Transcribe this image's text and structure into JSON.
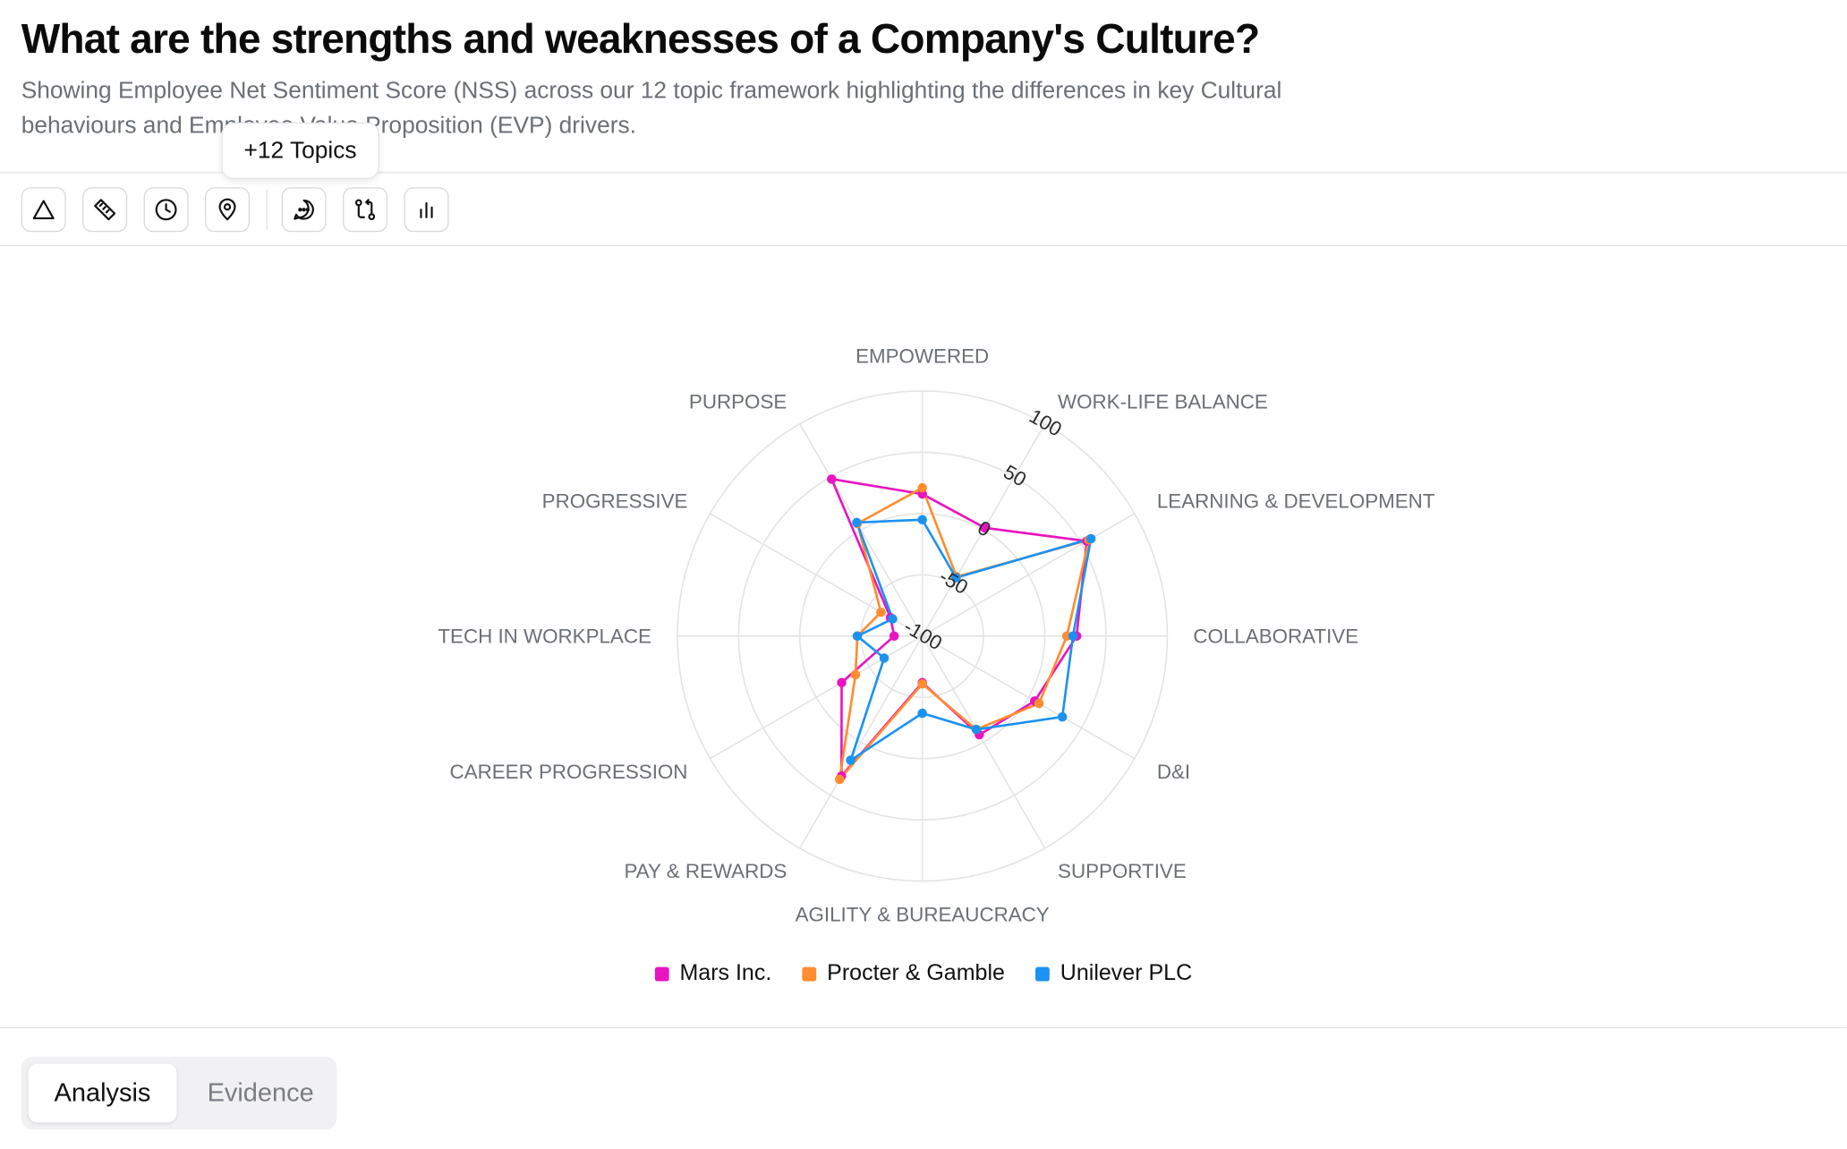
{
  "header": {
    "title": "What are the strengths and weaknesses of a Company's Culture?",
    "subtitle": "Showing Employee Net Sentiment Score (NSS) across our 12 topic framework highlighting the differences in key Cultural behaviours and Employee Value Proposition (EVP) drivers."
  },
  "tooltip": {
    "text": "+12 Topics"
  },
  "toolbar": {
    "buttons": [
      {
        "icon": "triangle-icon"
      },
      {
        "icon": "ruler-icon"
      },
      {
        "icon": "clock-icon"
      },
      {
        "icon": "map-pin-icon"
      },
      {
        "icon": "message-circle-icon"
      },
      {
        "icon": "compare-icon"
      },
      {
        "icon": "bar-chart-icon"
      }
    ]
  },
  "chart_data": {
    "type": "radar",
    "categories": [
      "EMPOWERED",
      "WORK-LIFE BALANCE",
      "LEARNING & DEVELOPMENT",
      "COLLABORATIVE",
      "D&I",
      "SUPPORTIVE",
      "AGILITY & BUREAUCRACY",
      "PAY & REWARDS",
      "CAREER PROGRESSION",
      "TECH IN WORKPLACE",
      "PROGRESSIVE",
      "PURPOSE"
    ],
    "radial_ticks": [
      -100,
      -50,
      0,
      50,
      100
    ],
    "rlim": [
      -100,
      100
    ],
    "grid": true,
    "legend_position": "bottom",
    "series": [
      {
        "name": "Mars Inc.",
        "color": "#e815c0",
        "values": [
          16,
          2,
          55,
          26,
          6,
          -7,
          -62,
          32,
          -24,
          -77,
          -70,
          48
        ]
      },
      {
        "name": "Procter & Gamble",
        "color": "#ff8c2e",
        "values": [
          21,
          -44,
          57,
          18,
          10,
          -12,
          -61,
          35,
          -37,
          -47,
          -61,
          6
        ]
      },
      {
        "name": "Unilever PLC",
        "color": "#1b92f1",
        "values": [
          -5,
          -45,
          59,
          23,
          32,
          -12,
          -37,
          17,
          -64,
          -47,
          -72,
          7
        ]
      }
    ]
  },
  "tabs": [
    {
      "label": "Analysis",
      "active": true
    },
    {
      "label": "Evidence",
      "active": false
    }
  ]
}
